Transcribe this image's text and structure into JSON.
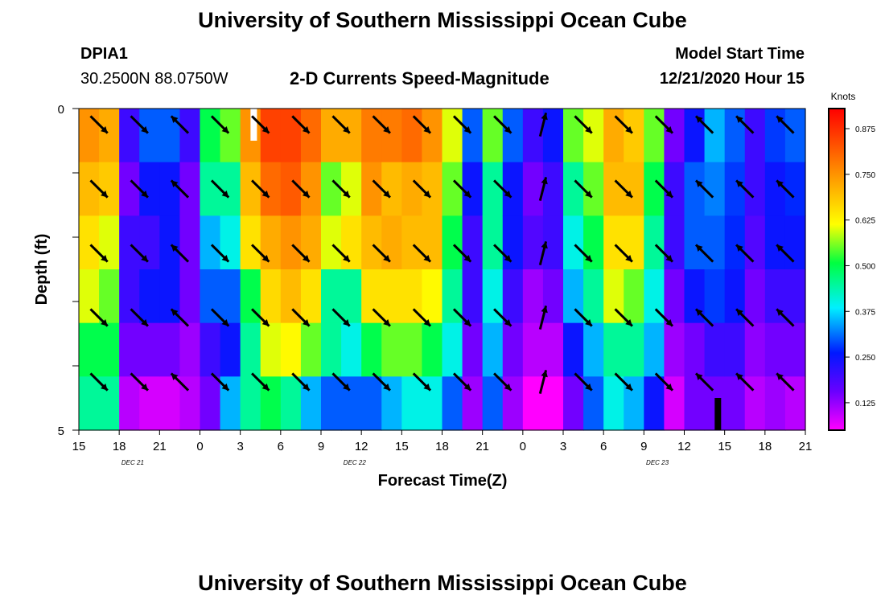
{
  "header": {
    "main_title": "University of Southern Mississippi Ocean Cube",
    "station_id": "DPIA1",
    "station_coords": "30.2500N 88.0750W",
    "plot_title": "2-D Currents Speed-Magnitude",
    "start_label": "Model Start Time",
    "start_value": "12/21/2020 Hour 15"
  },
  "footer": {
    "title": "University of Southern Mississippi Ocean Cube"
  },
  "chart_data": {
    "type": "heatmap",
    "title": "2-D Currents Speed-Magnitude",
    "xlabel": "Forecast Time(Z)",
    "ylabel": "Depth (ft)",
    "ylim": [
      0,
      5
    ],
    "y_ticks": [
      "0",
      "5"
    ],
    "x_ticks": [
      "15",
      "18",
      "21",
      "0",
      "3",
      "6",
      "9",
      "12",
      "15",
      "18",
      "21",
      "0",
      "3",
      "6",
      "9",
      "12",
      "15",
      "18",
      "21"
    ],
    "date_labels": [
      {
        "text": "DEC 21",
        "at_hour": 19
      },
      {
        "text": "DEC 22",
        "at_hour": 35.5
      },
      {
        "text": "DEC 23",
        "at_hour": 58
      }
    ],
    "units": "Knots",
    "colorbar_ticks": [
      "0.875",
      "0.750",
      "0.625",
      "0.500",
      "0.375",
      "0.250",
      "0.125"
    ],
    "colorbar_range": [
      0.05,
      0.93
    ],
    "hours_start": 15,
    "hours_span": 54,
    "depth_levels": 5,
    "columns": [
      {
        "speeds": [
          0.75,
          0.7,
          0.65,
          0.6,
          0.5,
          0.45
        ],
        "dir": "se"
      },
      {
        "speeds": [
          0.72,
          0.68,
          0.6,
          0.55,
          0.5,
          0.45
        ],
        "dir": "se"
      },
      {
        "speeds": [
          0.2,
          0.15,
          0.2,
          0.2,
          0.15,
          0.1
        ],
        "dir": "se"
      },
      {
        "speeds": [
          0.3,
          0.25,
          0.2,
          0.25,
          0.15,
          0.08
        ],
        "dir": "nw"
      },
      {
        "speeds": [
          0.3,
          0.25,
          0.25,
          0.25,
          0.15,
          0.08
        ],
        "dir": "nw"
      },
      {
        "speeds": [
          0.2,
          0.15,
          0.15,
          0.15,
          0.12,
          0.1
        ],
        "dir": "nw"
      },
      {
        "speeds": [
          0.5,
          0.45,
          0.35,
          0.3,
          0.2,
          0.15
        ],
        "dir": "se"
      },
      {
        "speeds": [
          0.55,
          0.45,
          0.4,
          0.3,
          0.25,
          0.35
        ],
        "dir": "se"
      },
      {
        "speeds": [
          0.75,
          0.7,
          0.65,
          0.5,
          0.45,
          0.45
        ],
        "dir": "se"
      },
      {
        "speeds": [
          0.85,
          0.8,
          0.72,
          0.66,
          0.6,
          0.5
        ],
        "dir": "se"
      },
      {
        "speeds": [
          0.85,
          0.82,
          0.75,
          0.7,
          0.62,
          0.45
        ],
        "dir": "se"
      },
      {
        "speeds": [
          0.8,
          0.75,
          0.72,
          0.65,
          0.55,
          0.35
        ],
        "dir": "se"
      },
      {
        "speeds": [
          0.72,
          0.55,
          0.6,
          0.45,
          0.45,
          0.3
        ],
        "dir": "se"
      },
      {
        "speeds": [
          0.72,
          0.6,
          0.65,
          0.45,
          0.4,
          0.3
        ],
        "dir": "se"
      },
      {
        "speeds": [
          0.78,
          0.75,
          0.7,
          0.65,
          0.5,
          0.3
        ],
        "dir": "se"
      },
      {
        "speeds": [
          0.78,
          0.7,
          0.72,
          0.65,
          0.55,
          0.35
        ],
        "dir": "se"
      },
      {
        "speeds": [
          0.8,
          0.72,
          0.7,
          0.65,
          0.55,
          0.4
        ],
        "dir": "se"
      },
      {
        "speeds": [
          0.75,
          0.7,
          0.7,
          0.62,
          0.5,
          0.4
        ],
        "dir": "se"
      },
      {
        "speeds": [
          0.6,
          0.55,
          0.5,
          0.45,
          0.4,
          0.3
        ],
        "dir": "se"
      },
      {
        "speeds": [
          0.3,
          0.25,
          0.2,
          0.2,
          0.15,
          0.12
        ],
        "dir": "se"
      },
      {
        "speeds": [
          0.55,
          0.45,
          0.45,
          0.4,
          0.35,
          0.3
        ],
        "dir": "se"
      },
      {
        "speeds": [
          0.3,
          0.25,
          0.25,
          0.2,
          0.15,
          0.12
        ],
        "dir": "n"
      },
      {
        "speeds": [
          0.2,
          0.15,
          0.18,
          0.12,
          0.1,
          0.05
        ],
        "dir": "n"
      },
      {
        "speeds": [
          0.25,
          0.2,
          0.2,
          0.15,
          0.1,
          0.05
        ],
        "dir": "n"
      },
      {
        "speeds": [
          0.55,
          0.45,
          0.4,
          0.35,
          0.25,
          0.15
        ],
        "dir": "se"
      },
      {
        "speeds": [
          0.6,
          0.55,
          0.5,
          0.45,
          0.35,
          0.3
        ],
        "dir": "se"
      },
      {
        "speeds": [
          0.72,
          0.7,
          0.65,
          0.6,
          0.45,
          0.4
        ],
        "dir": "se"
      },
      {
        "speeds": [
          0.68,
          0.7,
          0.65,
          0.55,
          0.45,
          0.35
        ],
        "dir": "se"
      },
      {
        "speeds": [
          0.55,
          0.5,
          0.45,
          0.4,
          0.35,
          0.25
        ],
        "dir": "se"
      },
      {
        "speeds": [
          0.15,
          0.2,
          0.2,
          0.15,
          0.12,
          0.08
        ],
        "dir": "nw"
      },
      {
        "speeds": [
          0.25,
          0.3,
          0.3,
          0.25,
          0.15,
          0.15
        ],
        "dir": "nw"
      },
      {
        "speeds": [
          0.35,
          0.32,
          0.3,
          0.28,
          0.2,
          0.15
        ],
        "dir": "nw"
      },
      {
        "speeds": [
          0.3,
          0.28,
          0.27,
          0.25,
          0.2,
          0.15
        ],
        "dir": "nw"
      },
      {
        "speeds": [
          0.2,
          0.2,
          0.18,
          0.15,
          0.13,
          0.1
        ],
        "dir": "wnw"
      },
      {
        "speeds": [
          0.28,
          0.25,
          0.25,
          0.2,
          0.15,
          0.12
        ],
        "dir": "nw"
      },
      {
        "speeds": [
          0.3,
          0.27,
          0.25,
          0.2,
          0.15,
          0.1
        ],
        "dir": "nw"
      }
    ],
    "missing_markers": [
      {
        "hour": 28,
        "depth_top": 0,
        "depth_bottom": 0.5,
        "color": "#ffffff"
      },
      {
        "hour": 62.5,
        "depth_top": 4.5,
        "depth_bottom": 5,
        "color": "#000000"
      }
    ]
  }
}
